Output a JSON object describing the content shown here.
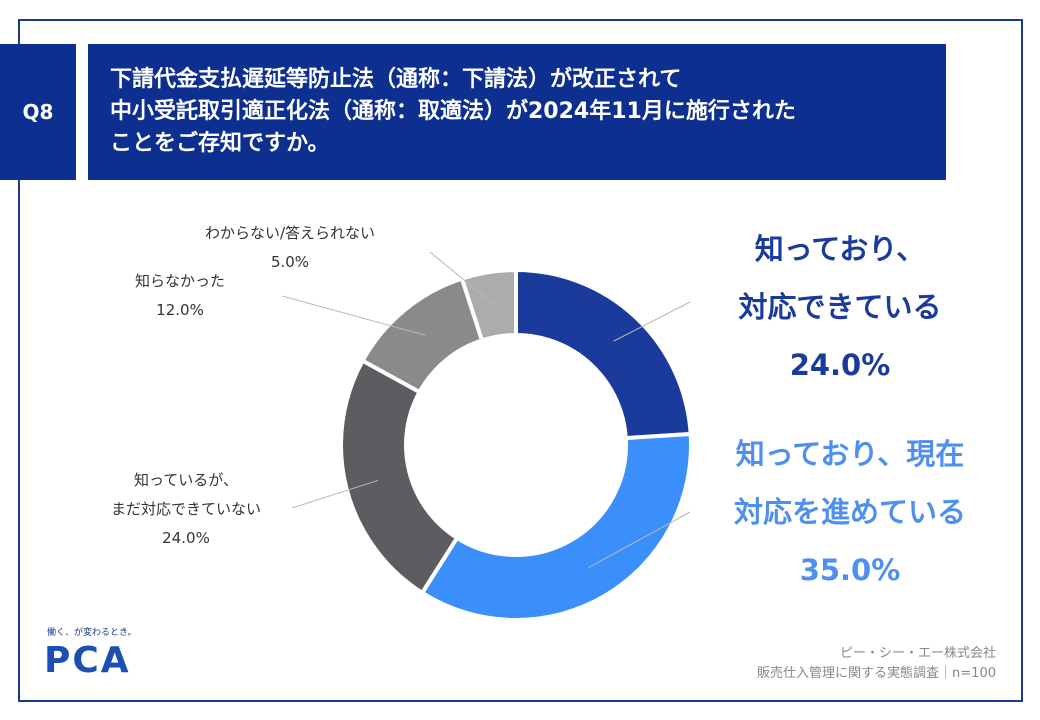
{
  "question": {
    "tag": "Q8",
    "lines": [
      "下請代金支払遅延等防止法（通称：下請法）が改正されて",
      "中小受託取引適正化法（通称：取適法）が2024年11月に施行された",
      "ことをご存知ですか。"
    ]
  },
  "chart_data": {
    "type": "pie",
    "subtype": "donut",
    "series": [
      {
        "label": [
          "知っており、",
          "対応できている"
        ],
        "value": 24.0,
        "display": "24.0%",
        "color": "#1a3b9c"
      },
      {
        "label": [
          "知っており、現在",
          "対応を進めている"
        ],
        "value": 35.0,
        "display": "35.0%",
        "color": "#3a8ffa"
      },
      {
        "label": [
          "知っているが、",
          "まだ対応できていない"
        ],
        "value": 24.0,
        "display": "24.0%",
        "color": "#5f5c61"
      },
      {
        "label": [
          "知らなかった"
        ],
        "value": 12.0,
        "display": "12.0%",
        "color": "#8c898d"
      },
      {
        "label": [
          "わからない/答えられない"
        ],
        "value": 5.0,
        "display": "5.0%",
        "color": "#adabae"
      }
    ],
    "label_colors": {
      "big_dark": "#1a3b9c",
      "big_light": "#4f8ff0"
    }
  },
  "footer": {
    "logo_tagline": "働く、が変わるとき。",
    "logo": "PCA",
    "company": "ピー・シー・エー株式会社",
    "survey": "販売仕入管理に関する実態調査｜n=100"
  }
}
